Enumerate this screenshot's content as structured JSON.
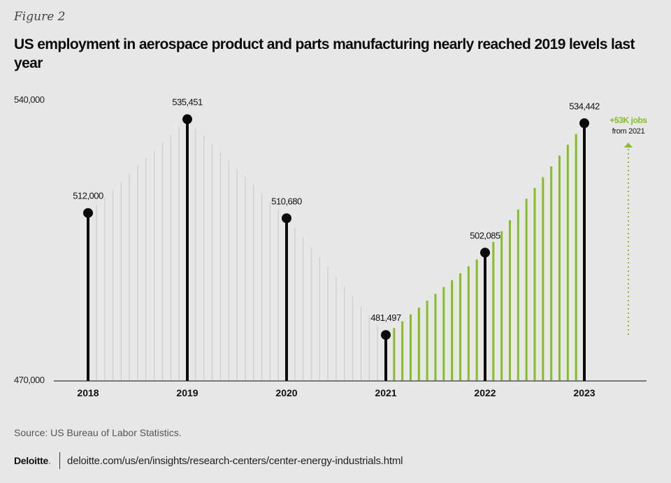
{
  "figure_label": "Figure 2",
  "title": "US employment in aerospace product and parts manufacturing nearly reached 2019 levels last year",
  "source": "Source: US Bureau of Labor Statistics.",
  "footer": {
    "logo_text": "Deloitte",
    "logo_dot": ".",
    "url": "deloitte.com/us/en/insights/research-centers/center-energy-industrials.html"
  },
  "colors": {
    "background": "#e6e7e6",
    "anchor": "#0a0a0a",
    "pre_recovery": "#cfcfcf",
    "recovery": "#86bc25",
    "axis": "#555555"
  },
  "chart_data": {
    "type": "bar",
    "title": "US employment in aerospace product and parts manufacturing nearly reached 2019 levels last year",
    "xlabel": "",
    "ylabel": "",
    "ylim": [
      470000,
      540000
    ],
    "ytick_labels": [
      "540,000",
      "470,000"
    ],
    "yticks": [
      540000,
      470000
    ],
    "grid": false,
    "interval": "monthly",
    "recovery_start_year": "2021",
    "categories": [
      "2018",
      "2019",
      "2020",
      "2021",
      "2022",
      "2023"
    ],
    "values": [
      512000,
      535451,
      510680,
      481497,
      502085,
      534442
    ],
    "value_labels": [
      "512,000",
      "535,451",
      "510,680",
      "481,497",
      "502,085",
      "534,442"
    ],
    "annotation": {
      "headline": "+53K jobs",
      "subline": "from 2021",
      "arrow": "up"
    }
  }
}
